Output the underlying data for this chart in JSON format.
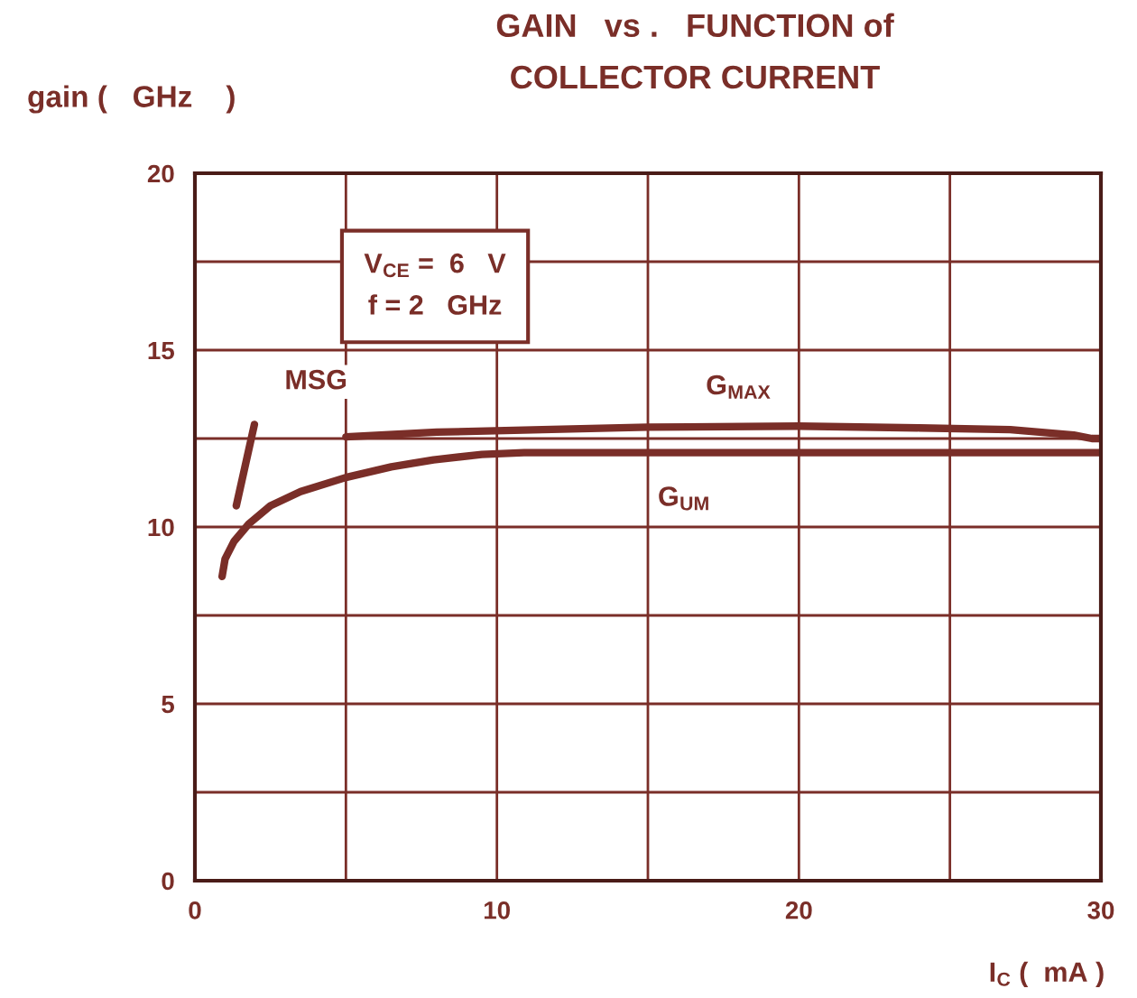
{
  "chart_data": {
    "type": "line",
    "title": "GAIN   vs .   FUNCTION of\nCOLLECTOR CURRENT",
    "ylabel": "gain (   GHz    )",
    "xlabel": "I$_{C}$ (  mA )",
    "annotations": [
      "V$_{CE}$ =  6   V",
      "f = 2   GHz"
    ],
    "series": [
      {
        "name": "MSG",
        "color": "#7a2e28",
        "x": [
          1.37,
          1.97
        ],
        "values": [
          10.6,
          12.9
        ]
      },
      {
        "name": "G$_{MAX}$",
        "color": "#7a2e28",
        "x": [
          5,
          8,
          11.5,
          15,
          20,
          24,
          27,
          29.1,
          29.7,
          30
        ],
        "values": [
          12.55,
          12.68,
          12.75,
          12.82,
          12.85,
          12.8,
          12.75,
          12.6,
          12.5,
          12.5
        ]
      },
      {
        "name": "G$_{UM}$",
        "color": "#7a2e28",
        "x": [
          0.9,
          1.0,
          1.3,
          1.8,
          2.5,
          3.5,
          5,
          6.5,
          7.9,
          9.5,
          10.9,
          15,
          20,
          25,
          30
        ],
        "values": [
          8.6,
          9.1,
          9.6,
          10.1,
          10.6,
          11.0,
          11.4,
          11.7,
          11.9,
          12.05,
          12.1,
          12.1,
          12.1,
          12.1,
          12.1
        ]
      }
    ],
    "xlim": [
      0,
      30
    ],
    "ylim": [
      0,
      20
    ],
    "xticks": [
      0,
      {
        "value": 5,
        "label": null
      },
      10,
      {
        "value": 15,
        "label": null
      },
      20,
      {
        "value": 25,
        "label": null
      },
      30
    ],
    "yticks": [
      0,
      {
        "value": 2.5,
        "label": null
      },
      5,
      {
        "value": 7.5,
        "label": null
      },
      10,
      {
        "value": 12.5,
        "label": null
      },
      15,
      {
        "value": 17.5,
        "label": null
      },
      20
    ],
    "grid": true,
    "legend": false,
    "marker": "none",
    "line_style": "solid"
  }
}
